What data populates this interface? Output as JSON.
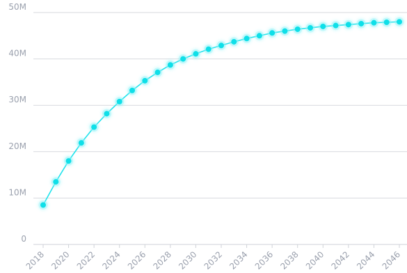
{
  "chart_data": {
    "type": "line",
    "title": "",
    "xlabel": "",
    "ylabel": "",
    "x": [
      2018,
      2019,
      2020,
      2021,
      2022,
      2023,
      2024,
      2025,
      2026,
      2027,
      2028,
      2029,
      2030,
      2031,
      2032,
      2033,
      2034,
      2035,
      2036,
      2037,
      2038,
      2039,
      2040,
      2041,
      2042,
      2043,
      2044,
      2045,
      2046
    ],
    "series": [
      {
        "values": [
          8.5,
          13.5,
          18.0,
          21.9,
          25.3,
          28.2,
          30.8,
          33.2,
          35.3,
          37.1,
          38.7,
          40.0,
          41.1,
          42.1,
          42.9,
          43.7,
          44.4,
          45.0,
          45.6,
          46.0,
          46.4,
          46.7,
          47.0,
          47.2,
          47.4,
          47.6,
          47.8,
          47.9,
          48.0
        ]
      }
    ],
    "ylim": [
      0,
      50
    ],
    "y_ticks": [
      0,
      10,
      20,
      30,
      40,
      50
    ],
    "y_tick_labels": [
      "0",
      "10M",
      "20M",
      "30M",
      "40M",
      "50M"
    ],
    "x_tick_labels": [
      "2018",
      "2020",
      "2022",
      "2024",
      "2026",
      "2028",
      "2030",
      "2032",
      "2034",
      "2036",
      "2038",
      "2040",
      "2042",
      "2044",
      "2046"
    ],
    "grid": true,
    "legend": "none",
    "colors": {
      "line": "#1ee3ec",
      "point": "#0fdfe8",
      "glow": "#8ff4f8",
      "grid": "#d7d9de",
      "tick_label": "#9aa0ad"
    }
  }
}
